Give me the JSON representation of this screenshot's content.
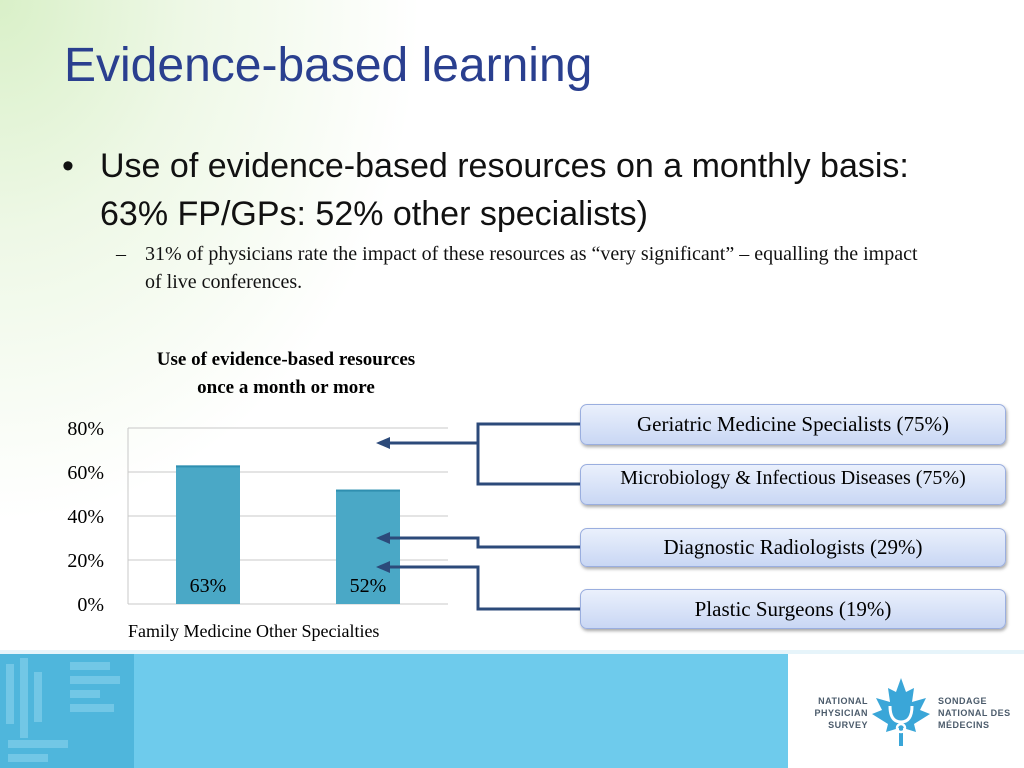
{
  "slide": {
    "title": "Evidence-based learning",
    "bullet_mark": "•",
    "bullet": "Use of evidence-based resources on a monthly basis: 63% FP/GPs: 52% other specialists)",
    "sub_mark": "–",
    "sub_bullet": "31% of physicians rate the impact of these resources as “very significant” – equalling the impact of live conferences."
  },
  "chart_data": {
    "type": "bar",
    "title": "Use of evidence-based resources once a month or more",
    "categories": [
      "Family Medicine",
      "Other Specialties"
    ],
    "categories_line": "Family Medicine Other Specialties",
    "values": [
      63,
      52
    ],
    "data_labels": [
      "63%",
      "52%"
    ],
    "ylim": [
      0,
      80
    ],
    "yticks": [
      "0%",
      "20%",
      "40%",
      "60%",
      "80%"
    ],
    "grid": true,
    "bar_color": "#4aa8c6"
  },
  "callouts": [
    "Geriatric Medicine Specialists (75%)",
    "Microbiology & Infectious Diseases (75%)",
    "Diagnostic Radiologists (29%)",
    "Plastic Surgeons (19%)"
  ],
  "logo": {
    "left_lines": [
      "NATIONAL",
      "PHYSICIAN",
      "SURVEY"
    ],
    "right_lines": [
      "SONDAGE",
      "NATIONAL DES",
      "MÉDECINS"
    ]
  },
  "colors": {
    "title": "#2a3f8f",
    "arrow": "#2c4a7a",
    "footer": "#6ecbec",
    "leaf": "#3aa6d8"
  }
}
